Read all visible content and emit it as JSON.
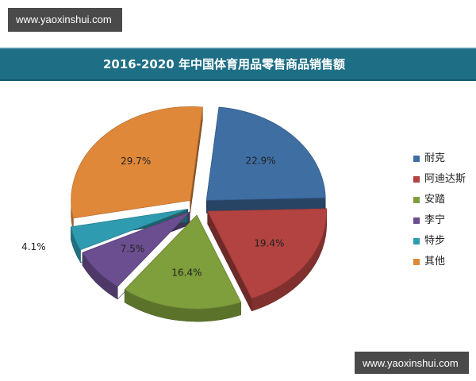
{
  "watermark": {
    "top": "www.yaoxinshui.com",
    "bottom": "www.yaoxinshui.com"
  },
  "title": "2016-2020 年中国体育用品零售商品销售额",
  "colors": {
    "title_bar": "#1e6f86",
    "series": [
      "#3f6ea3",
      "#b24340",
      "#7f9e3c",
      "#6b4e8f",
      "#2f9bb0",
      "#e0883a"
    ]
  },
  "chart_data": {
    "type": "pie",
    "title": "2016-2020 年中国体育用品零售商品销售额",
    "categories": [
      "耐克",
      "阿迪达斯",
      "安踏",
      "李宁",
      "特步",
      "其他"
    ],
    "values": [
      22.9,
      19.4,
      16.4,
      7.5,
      4.1,
      29.7
    ],
    "labels": [
      "22.9%",
      "19.4%",
      "16.4%",
      "7.5%",
      "4.1%",
      "29.7%"
    ],
    "legend_position": "right",
    "exploded": true,
    "style": "3d"
  }
}
